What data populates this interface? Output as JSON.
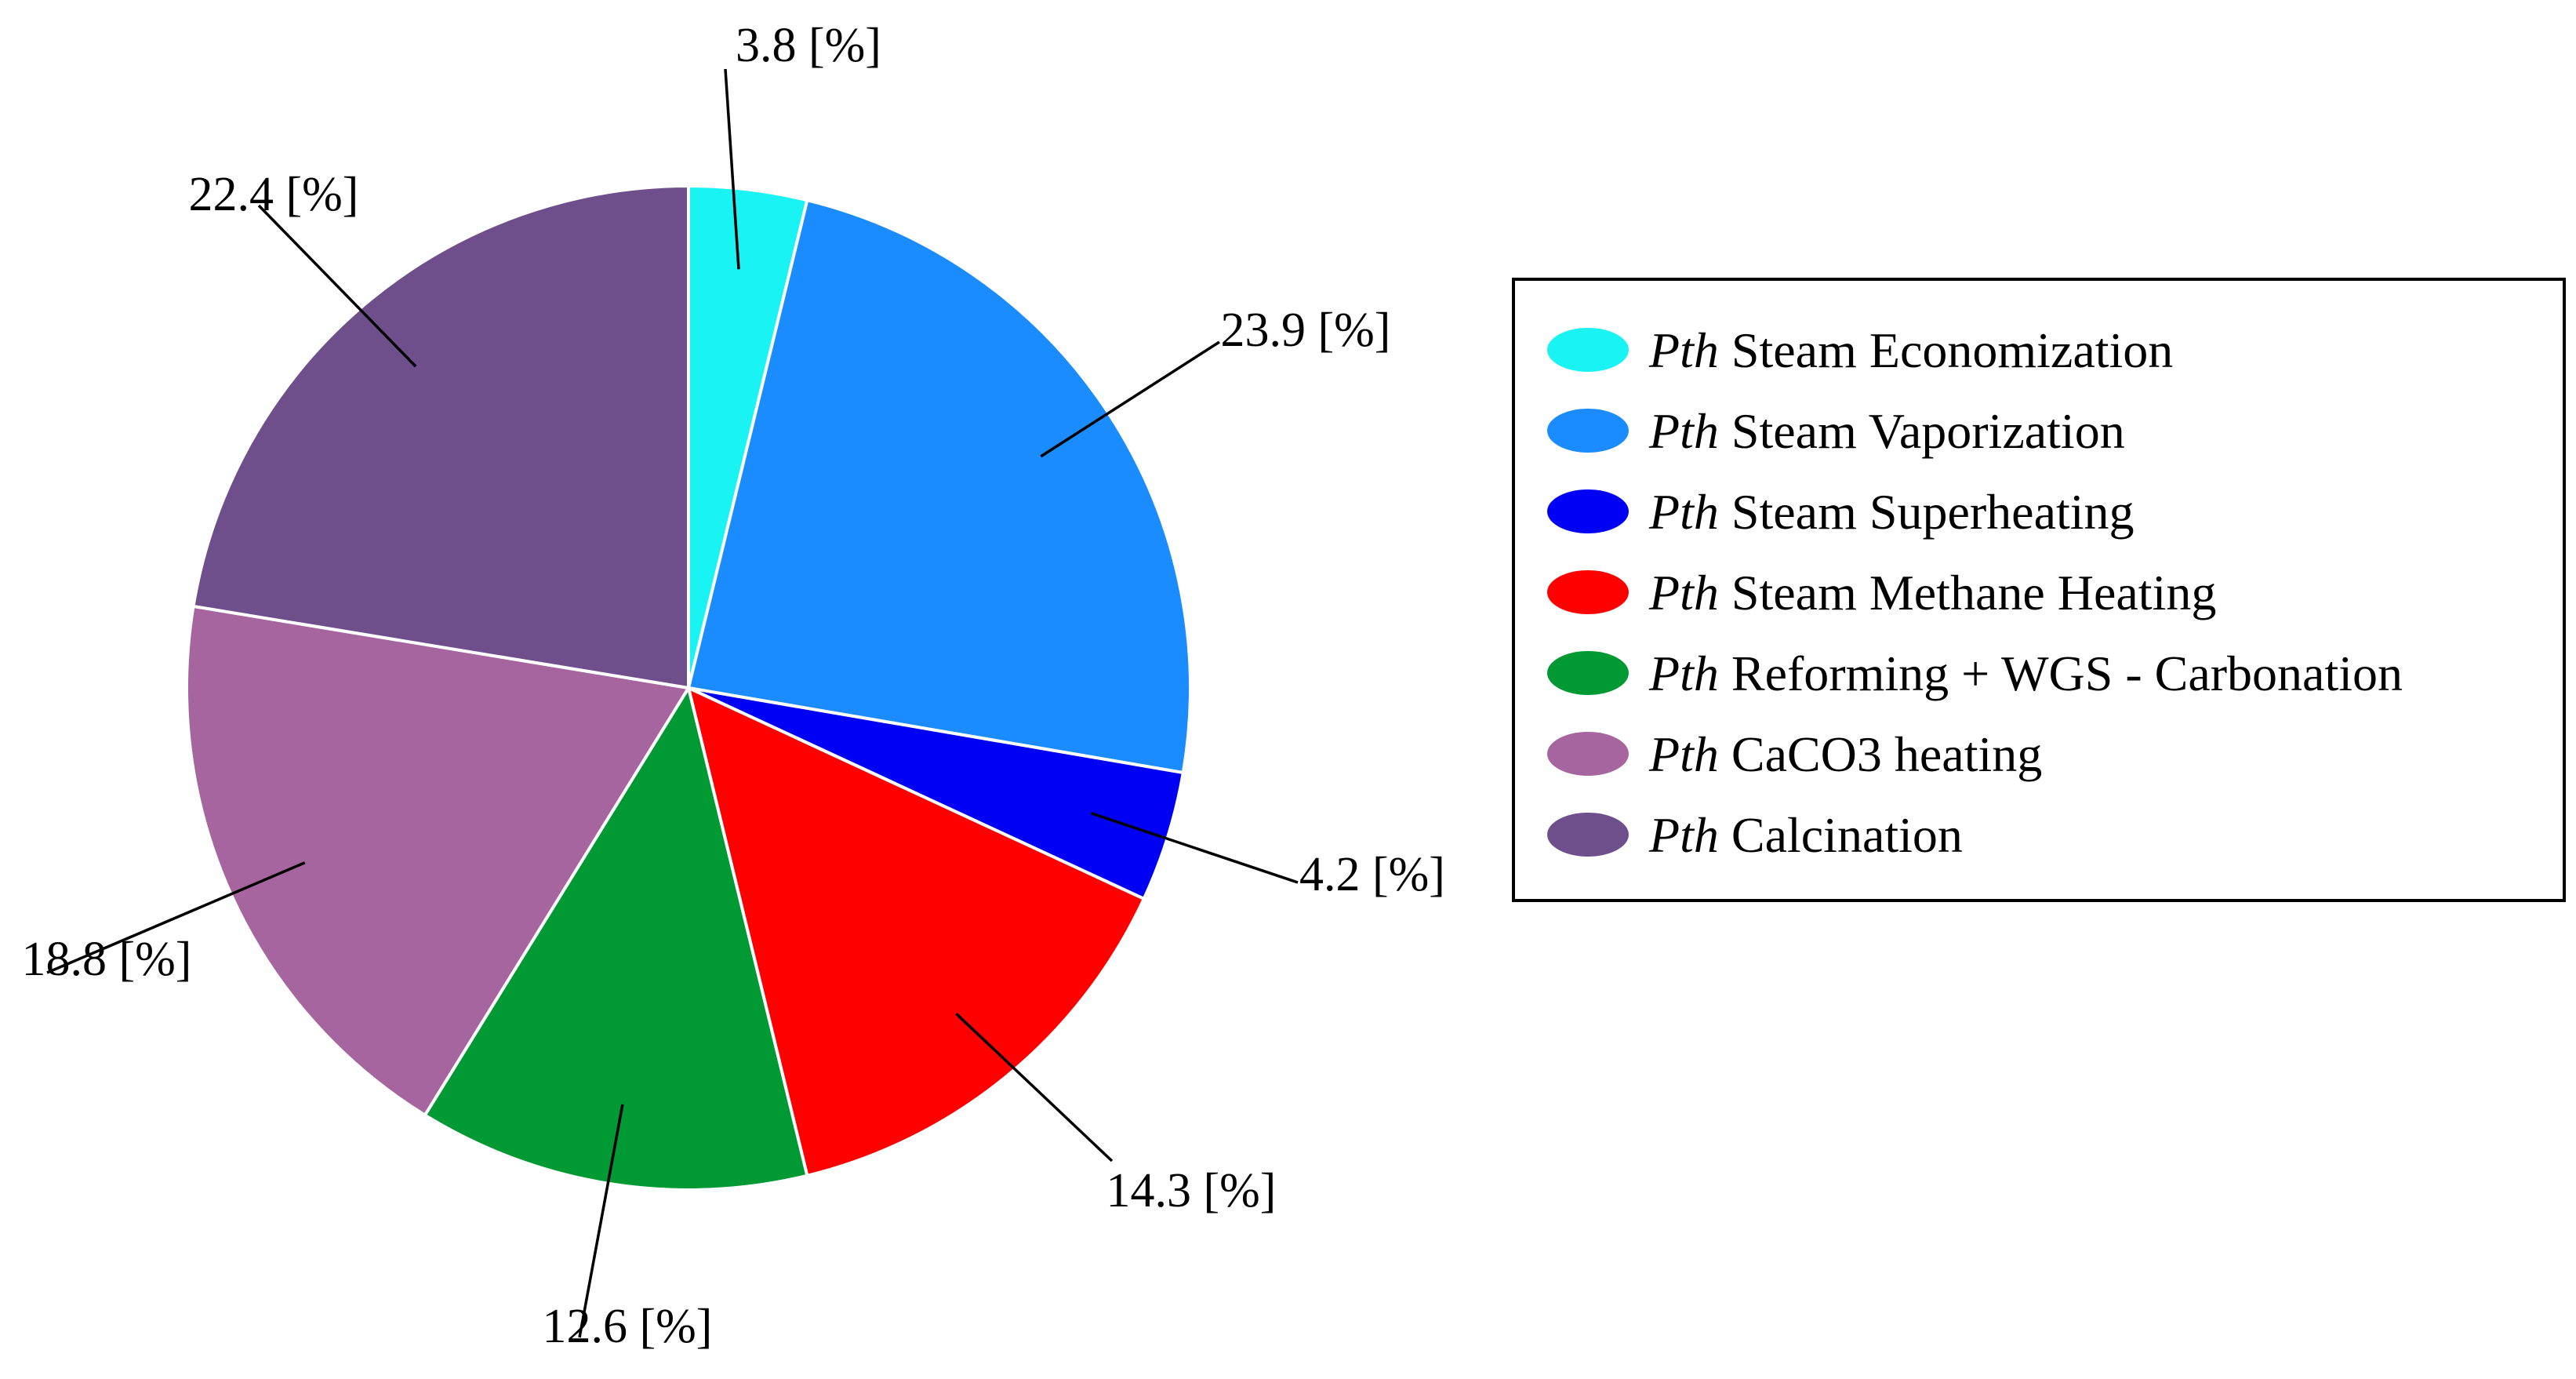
{
  "chart_data": {
    "type": "pie",
    "label_unit": "[%]",
    "legend_prefix": "Pth",
    "legend_position": "right",
    "slices": [
      {
        "label": "Steam Economization",
        "value": 3.8,
        "value_label": "3.8",
        "color": "#1af3f3"
      },
      {
        "label": "Steam Vaporization",
        "value": 23.9,
        "value_label": "23.9",
        "color": "#1a8cff"
      },
      {
        "label": "Steam Superheating",
        "value": 4.2,
        "value_label": "4.2",
        "color": "#0000f5"
      },
      {
        "label": "Steam Methane Heating",
        "value": 14.3,
        "value_label": "14.3",
        "color": "#ff0000"
      },
      {
        "label": "Reforming + WGS - Carbonation",
        "value": 12.6,
        "value_label": "12.6",
        "color": "#009933"
      },
      {
        "label": "CaCO3 heating",
        "value": 18.8,
        "value_label": "18.8",
        "color": "#a6659e"
      },
      {
        "label": "Calcination",
        "value": 22.4,
        "value_label": "22.4",
        "color": "#6e4f8c"
      }
    ]
  }
}
